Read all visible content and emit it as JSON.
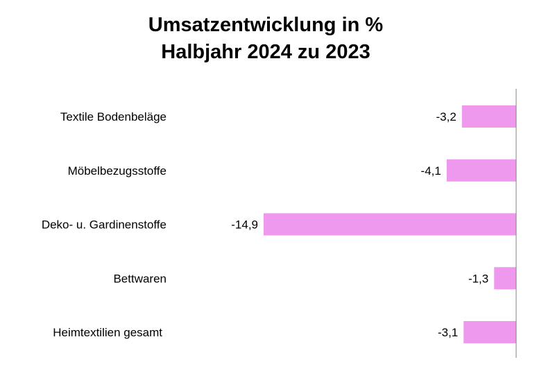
{
  "chart_data": {
    "type": "bar",
    "orientation": "horizontal",
    "title_lines": [
      "Umsatzentwicklung in %",
      "Halbjahr 2024 zu 2023"
    ],
    "categories": [
      "Textile Bodenbeläge",
      "Möbelbezugsstoffe",
      "Deko- u. Gardinenstoffe",
      "Bettwaren",
      "Heimtextilien gesamt"
    ],
    "values": [
      -3.2,
      -4.1,
      -14.9,
      -1.3,
      -3.1
    ],
    "value_labels": [
      "-3,2",
      "-4,1",
      "-14,9",
      "-1,3",
      "-3,1"
    ],
    "bar_color": "#EE99EE",
    "axis_color": "#808080",
    "xlim": [
      -14.9,
      0
    ],
    "grid": false,
    "legend": "none"
  }
}
